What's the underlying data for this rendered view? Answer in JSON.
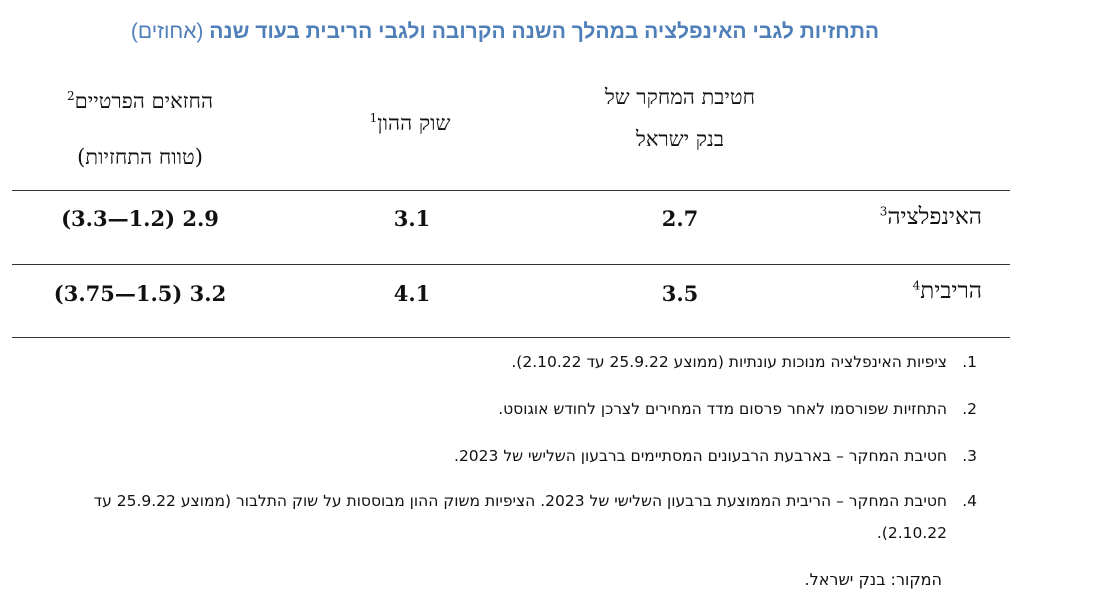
{
  "title": {
    "main": "התחזיות לגבי האינפלציה במהלך השנה הקרובה ולגבי הריבית בעוד שנה",
    "unit": "(אחוזים)"
  },
  "columns": {
    "research_line1": "חטיבת המחקר של",
    "research_line2": "בנק ישראל",
    "capital_market": "שוק ההון",
    "capital_market_note": "1",
    "private_line1": "החזאים הפרטיים",
    "private_note": "2",
    "private_line2": "(טווח התחזיות)"
  },
  "rows": [
    {
      "label": "האינפלציה",
      "note": "3",
      "research": "2.7",
      "capital": "3.1",
      "private": "2.9 (1.2—3.3)"
    },
    {
      "label": "הריבית",
      "note": "4",
      "research": "3.5",
      "capital": "4.1",
      "private": "3.2 (1.5—3.75)"
    }
  ],
  "footnotes": [
    {
      "num": "1.",
      "text": "ציפיות האינפלציה מנוכות עונתיות (ממוצע  25.9.22 עד 2.10.22)."
    },
    {
      "num": "2.",
      "text": "התחזיות שפורסמו לאחר פרסום מדד המחירים לצרכן לחודש אוגוסט."
    },
    {
      "num": "3.",
      "text": "חטיבת המחקר – בארבעת הרבעונים המסתיימים ברבעון השלישי של 2023."
    },
    {
      "num": "4.",
      "text": "חטיבת המחקר – הריבית הממוצעת ברבעון השלישי של 2023. הציפיות משוק ההון מבוססות על שוק התלבור (ממוצע 25.9.22 עד 2.10.22)."
    }
  ],
  "source": "המקור: בנק ישראל."
}
